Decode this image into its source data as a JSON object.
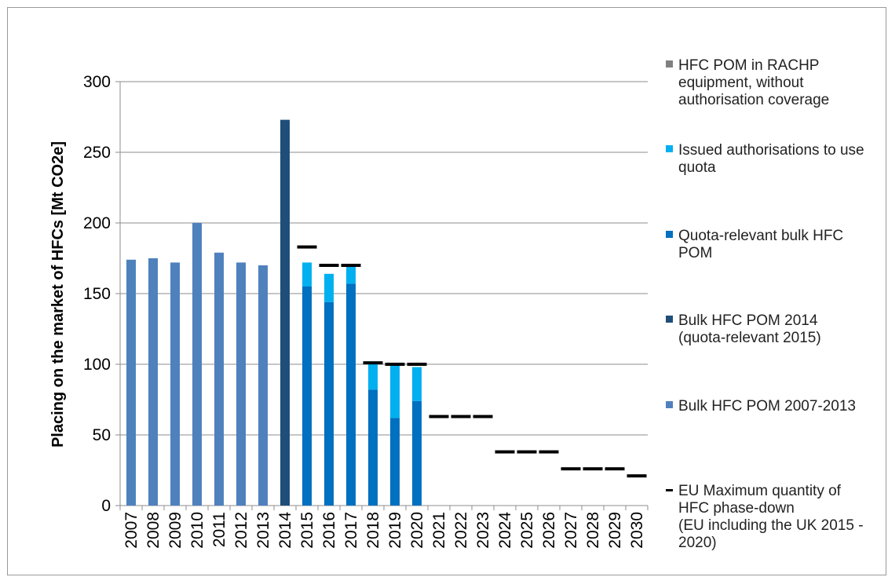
{
  "chart_data": {
    "type": "bar",
    "ylabel": "Placing on the market of HFCs [Mt CO2e]",
    "xlabel": "",
    "ylim": [
      0,
      300
    ],
    "yticks": [
      0,
      50,
      100,
      150,
      200,
      250,
      300
    ],
    "grid": true,
    "legend_position": "right",
    "categories": [
      "2007",
      "2008",
      "2009",
      "2010",
      "2011",
      "2012",
      "2013",
      "2014",
      "2015",
      "2016",
      "2017",
      "2018",
      "2019",
      "2020",
      "2021",
      "2022",
      "2023",
      "2024",
      "2025",
      "2026",
      "2027",
      "2028",
      "2029",
      "2030"
    ],
    "series": [
      {
        "name": "HFC POM in RACHP equipment, without authorisation coverage",
        "kind": "stacked-bar",
        "color": "#808080",
        "values": [
          null,
          null,
          null,
          null,
          null,
          null,
          null,
          null,
          null,
          null,
          null,
          null,
          null,
          null,
          null,
          null,
          null,
          null,
          null,
          null,
          null,
          null,
          null,
          null
        ]
      },
      {
        "name": "Issued authorisations to use quota",
        "kind": "stacked-bar",
        "color": "#00b0f0",
        "values": [
          null,
          null,
          null,
          null,
          null,
          null,
          null,
          null,
          17,
          20,
          13,
          18,
          37,
          24,
          null,
          null,
          null,
          null,
          null,
          null,
          null,
          null,
          null,
          null
        ]
      },
      {
        "name": "Quota-relevant bulk HFC POM",
        "kind": "stacked-bar",
        "color": "#0070c0",
        "values": [
          null,
          null,
          null,
          null,
          null,
          null,
          null,
          null,
          155,
          144,
          157,
          82,
          62,
          74,
          null,
          null,
          null,
          null,
          null,
          null,
          null,
          null,
          null,
          null
        ]
      },
      {
        "name": "Bulk HFC POM 2014 (quota-relevant 2015)",
        "kind": "stacked-bar",
        "color": "#1f4e79",
        "values": [
          null,
          null,
          null,
          null,
          null,
          null,
          null,
          273,
          null,
          null,
          null,
          null,
          null,
          null,
          null,
          null,
          null,
          null,
          null,
          null,
          null,
          null,
          null,
          null
        ]
      },
      {
        "name": "Bulk HFC POM 2007-2013",
        "kind": "stacked-bar",
        "color": "#4f81bd",
        "values": [
          174,
          175,
          172,
          200,
          179,
          172,
          170,
          null,
          null,
          null,
          null,
          null,
          null,
          null,
          null,
          null,
          null,
          null,
          null,
          null,
          null,
          null,
          null,
          null
        ]
      },
      {
        "name": "EU Maximum quantity of HFC phase-down (EU including the UK 2015 - 2020)",
        "kind": "marker",
        "color": "#000000",
        "values": [
          null,
          null,
          null,
          null,
          null,
          null,
          null,
          null,
          183,
          170,
          170,
          101,
          100,
          100,
          63,
          63,
          63,
          38,
          38,
          38,
          26,
          26,
          26,
          21
        ]
      }
    ]
  }
}
